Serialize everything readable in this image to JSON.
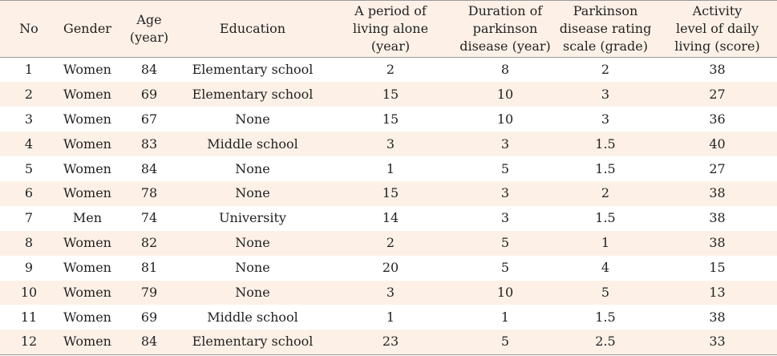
{
  "colors": {
    "header_bg": "#fdf1e7",
    "stripe_bg": "#fdf1e7",
    "rule": "#999999"
  },
  "table": {
    "headers": [
      [
        "No"
      ],
      [
        "Gender"
      ],
      [
        "Age",
        "(year)"
      ],
      [
        "Education"
      ],
      [
        "A period of",
        "living alone",
        "(year)"
      ],
      [
        "Duration of",
        "parkinson",
        "disease (year)"
      ],
      [
        "Parkinson",
        "disease rating",
        "scale (grade)"
      ],
      [
        "Activity",
        "level of daily",
        "living (score)"
      ]
    ],
    "rows": [
      [
        "1",
        "Women",
        "84",
        "Elementary school",
        "2",
        "8",
        "2",
        "38"
      ],
      [
        "2",
        "Women",
        "69",
        "Elementary school",
        "15",
        "10",
        "3",
        "27"
      ],
      [
        "3",
        "Women",
        "67",
        "None",
        "15",
        "10",
        "3",
        "36"
      ],
      [
        "4",
        "Women",
        "83",
        "Middle school",
        "3",
        "3",
        "1.5",
        "40"
      ],
      [
        "5",
        "Women",
        "84",
        "None",
        "1",
        "5",
        "1.5",
        "27"
      ],
      [
        "6",
        "Women",
        "78",
        "None",
        "15",
        "3",
        "2",
        "38"
      ],
      [
        "7",
        "Men",
        "74",
        "University",
        "14",
        "3",
        "1.5",
        "38"
      ],
      [
        "8",
        "Women",
        "82",
        "None",
        "2",
        "5",
        "1",
        "38"
      ],
      [
        "9",
        "Women",
        "81",
        "None",
        "20",
        "5",
        "4",
        "15"
      ],
      [
        "10",
        "Women",
        "79",
        "None",
        "3",
        "10",
        "5",
        "13"
      ],
      [
        "11",
        "Women",
        "69",
        "Middle school",
        "1",
        "1",
        "1.5",
        "38"
      ],
      [
        "12",
        "Women",
        "84",
        "Elementary school",
        "23",
        "5",
        "2.5",
        "33"
      ]
    ]
  }
}
